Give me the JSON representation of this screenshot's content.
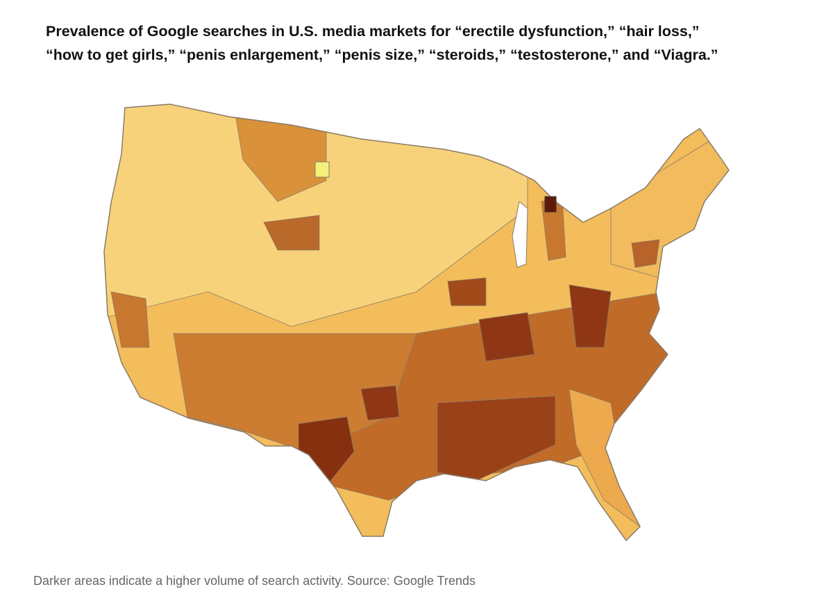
{
  "header": {
    "title_lines": [
      "Prevalence of Google searches in U.S. media markets for “erectile dysfunction,” “hair loss,”",
      "“how to get girls,” “penis enlargement,” “penis size,” “steroids,” “testosterone,” and “Viagra.”"
    ]
  },
  "caption": "Darker areas indicate a higher volume of search activity. Source: Google Trends"
}
